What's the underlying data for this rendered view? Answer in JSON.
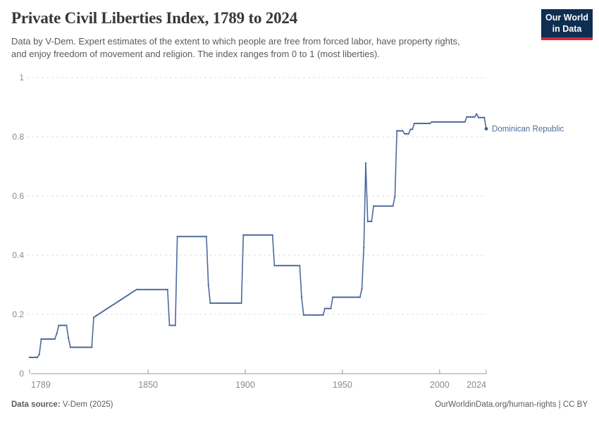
{
  "header": {
    "subtitle_lines": [
      "Data by V-Dem. Expert estimates of the extent to which people are free from forced labor, have property rights,",
      "and enjoy freedom of movement and religion. The index ranges from 0 to 1 (most liberties)."
    ],
    "logo": {
      "line1": "Our World",
      "line2": "in Data",
      "bg_color": "#0e2e52",
      "accent_color": "#d0293e"
    }
  },
  "footer": {
    "source_label": "Data source:",
    "source_value": " V-Dem (2025)",
    "right_text": "OurWorldinData.org/human-rights | CC BY"
  },
  "chart_data": {
    "type": "line",
    "title": "Private Civil Liberties Index, 1789 to 2024",
    "entity": "Dominican Republic",
    "xlabel": "",
    "ylabel": "",
    "xlim": [
      1789,
      2024
    ],
    "ylim": [
      0,
      1
    ],
    "grid": "dashed-horizontal",
    "legend_position": "end-of-line-label",
    "x_ticks": [
      {
        "year": 1789,
        "label": "1789",
        "align": "start"
      },
      {
        "year": 1850,
        "label": "1850"
      },
      {
        "year": 1900,
        "label": "1900"
      },
      {
        "year": 1950,
        "label": "1950"
      },
      {
        "year": 2000,
        "label": "2000"
      },
      {
        "year": 2024,
        "label": "2024",
        "align": "end"
      }
    ],
    "y_ticks": [
      {
        "value": 0,
        "label": "0"
      },
      {
        "value": 0.2,
        "label": "0.2"
      },
      {
        "value": 0.4,
        "label": "0.4"
      },
      {
        "value": 0.6,
        "label": "0.6"
      },
      {
        "value": 0.8,
        "label": "0.8"
      },
      {
        "value": 1,
        "label": "1"
      }
    ],
    "style": {
      "line_color": "#4c6a9c",
      "marker_color": "#3d5c94",
      "label_color": "#4d6b9d",
      "grid_color": "#dcdcdc",
      "axis_color": "#9a9a9a",
      "tick_label_color": "#8a8a8a"
    },
    "segments": [
      {
        "from": 1789,
        "to": 1793,
        "value": 0.055
      },
      {
        "from": 1794,
        "to": 1794,
        "value": 0.065
      },
      {
        "from": 1795,
        "to": 1802,
        "value": 0.117
      },
      {
        "from": 1803,
        "to": 1803,
        "value": 0.136
      },
      {
        "from": 1804,
        "to": 1808,
        "value": 0.163
      },
      {
        "from": 1809,
        "to": 1809,
        "value": 0.12
      },
      {
        "from": 1810,
        "to": 1821,
        "value": 0.089
      },
      {
        "from": 1822,
        "to": 1844,
        "value": 0.19,
        "value_end": 0.284
      },
      {
        "from": 1845,
        "to": 1860,
        "value": 0.284
      },
      {
        "from": 1861,
        "to": 1864,
        "value": 0.163
      },
      {
        "from": 1865,
        "to": 1880,
        "value": 0.463
      },
      {
        "from": 1881,
        "to": 1881,
        "value": 0.3
      },
      {
        "from": 1882,
        "to": 1898,
        "value": 0.238
      },
      {
        "from": 1899,
        "to": 1914,
        "value": 0.468
      },
      {
        "from": 1915,
        "to": 1928,
        "value": 0.365
      },
      {
        "from": 1929,
        "to": 1929,
        "value": 0.258
      },
      {
        "from": 1930,
        "to": 1940,
        "value": 0.198
      },
      {
        "from": 1941,
        "to": 1944,
        "value": 0.22
      },
      {
        "from": 1945,
        "to": 1959,
        "value": 0.258
      },
      {
        "from": 1960,
        "to": 1960,
        "value": 0.286
      },
      {
        "from": 1961,
        "to": 1961,
        "value": 0.427
      },
      {
        "from": 1962,
        "to": 1962,
        "value": 0.711
      },
      {
        "from": 1963,
        "to": 1965,
        "value": 0.514
      },
      {
        "from": 1966,
        "to": 1976,
        "value": 0.566
      },
      {
        "from": 1977,
        "to": 1977,
        "value": 0.598
      },
      {
        "from": 1978,
        "to": 1981,
        "value": 0.82
      },
      {
        "from": 1982,
        "to": 1984,
        "value": 0.81
      },
      {
        "from": 1985,
        "to": 1986,
        "value": 0.825
      },
      {
        "from": 1987,
        "to": 1995,
        "value": 0.845
      },
      {
        "from": 1996,
        "to": 2013,
        "value": 0.85
      },
      {
        "from": 2014,
        "to": 2018,
        "value": 0.867
      },
      {
        "from": 2019,
        "to": 2019,
        "value": 0.877
      },
      {
        "from": 2020,
        "to": 2023,
        "value": 0.865
      },
      {
        "from": 2024,
        "to": 2024,
        "value": 0.827
      }
    ]
  }
}
